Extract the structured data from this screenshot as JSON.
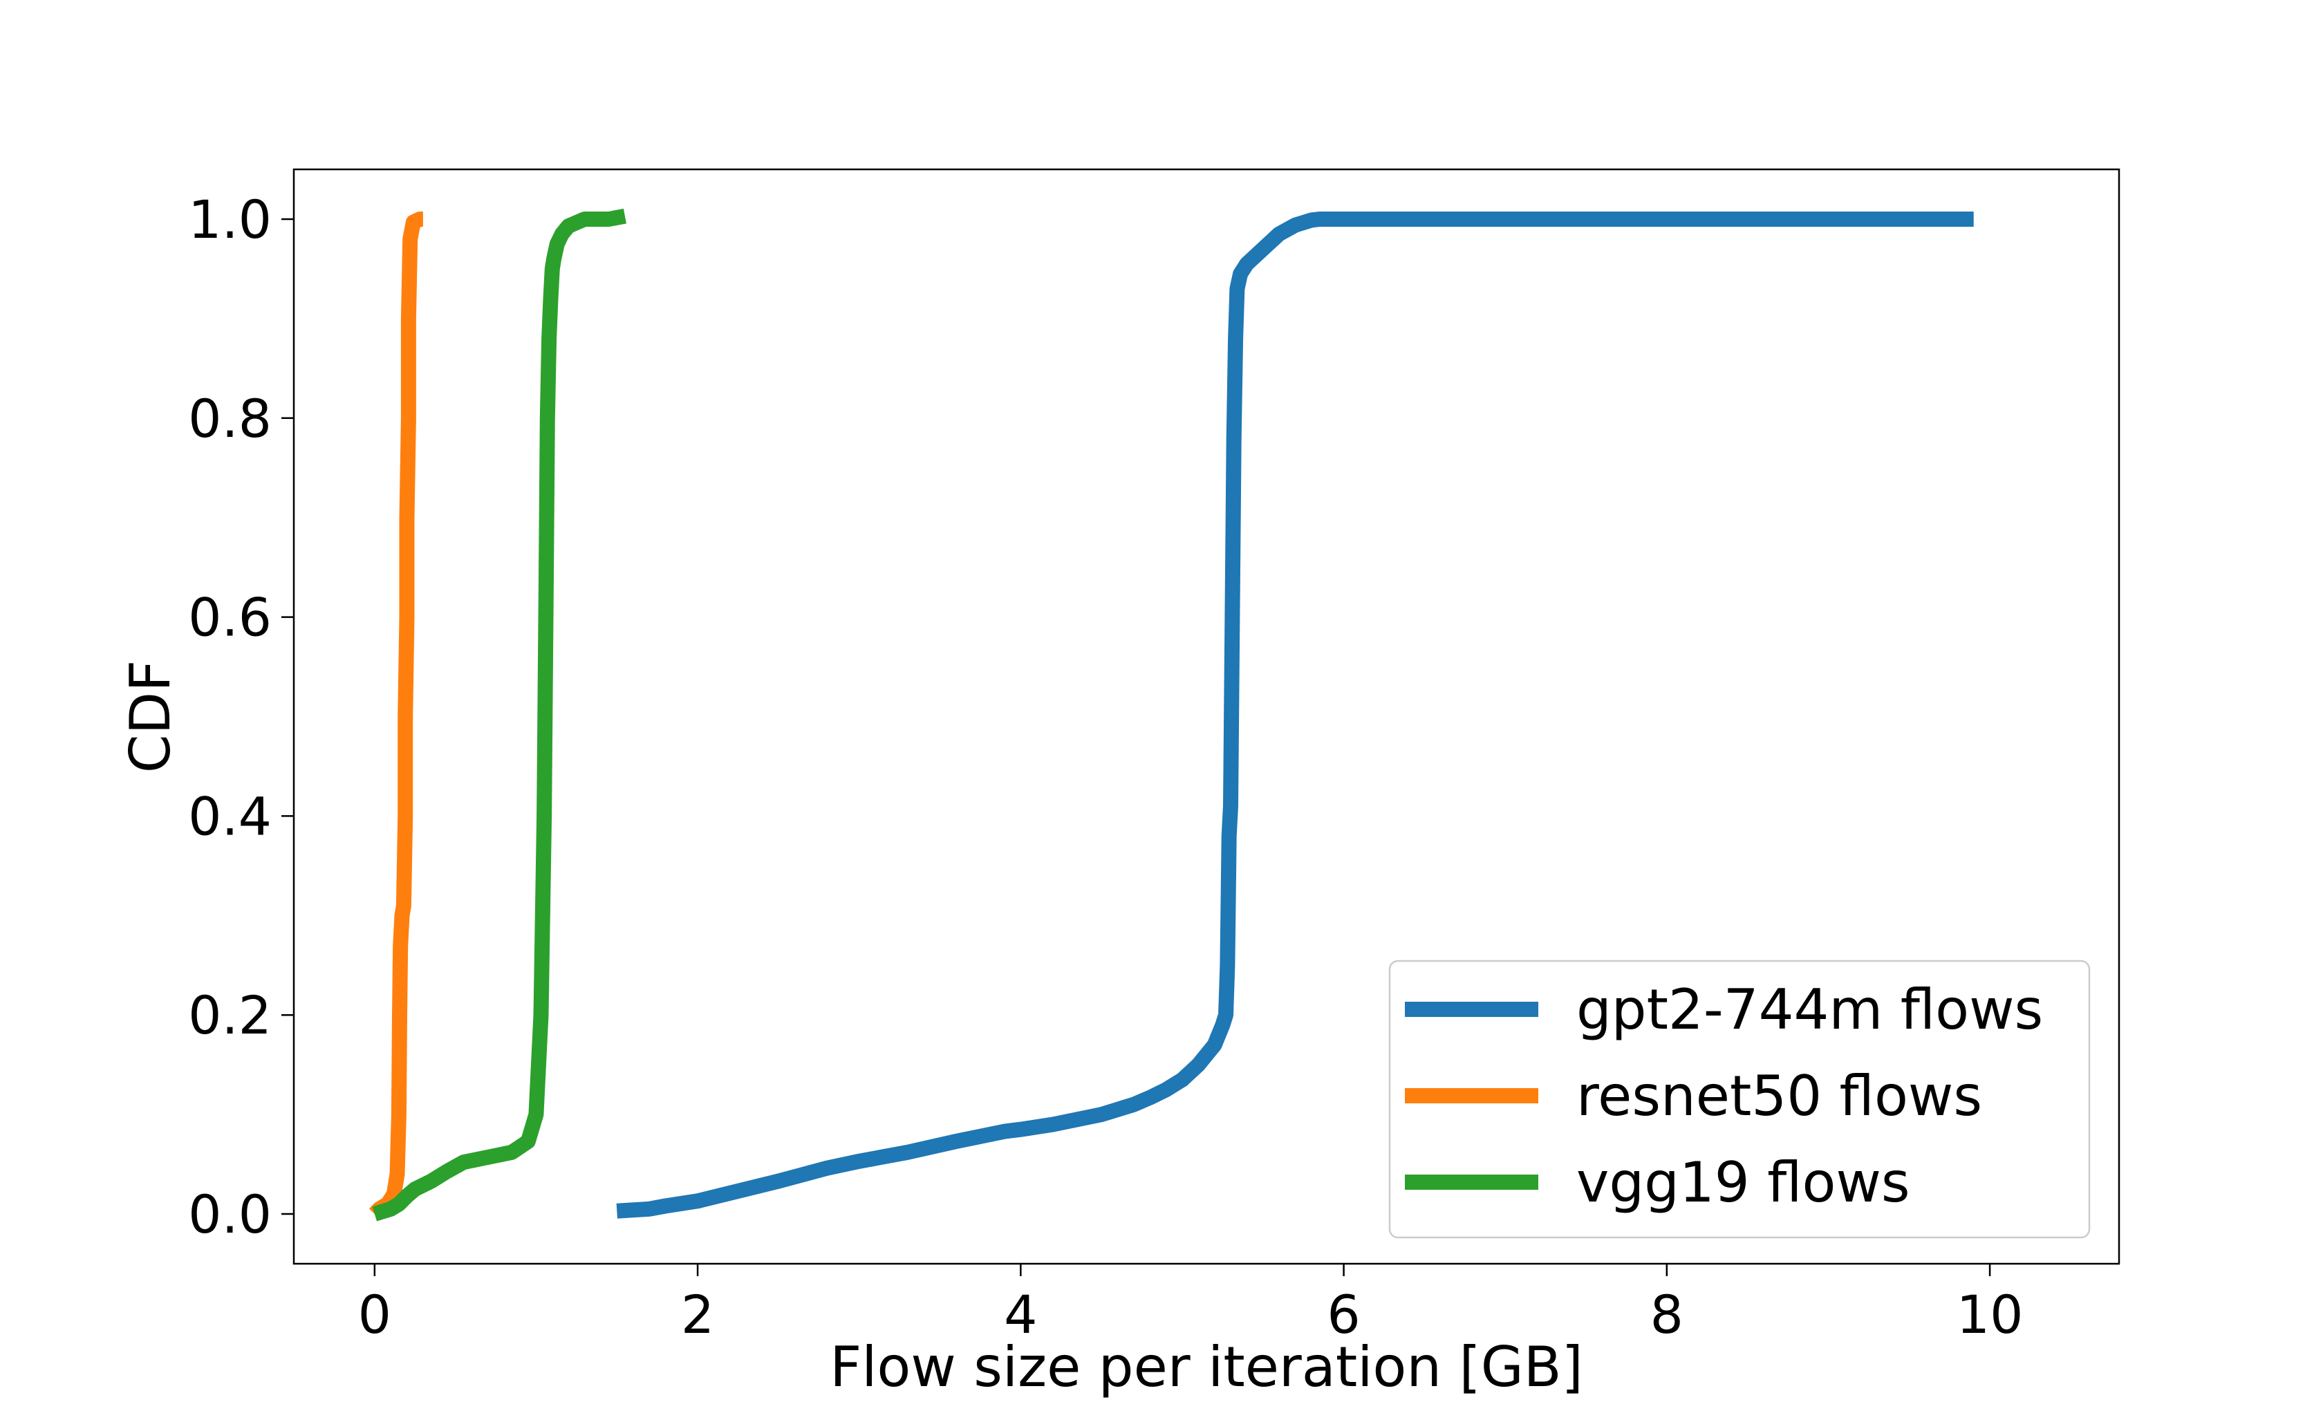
{
  "chart_data": {
    "type": "line",
    "title": "",
    "xlabel": "Flow size per iteration [GB]",
    "ylabel": "CDF",
    "xlim": [
      -0.5,
      10.8
    ],
    "ylim": [
      -0.05,
      1.05
    ],
    "xticks": [
      0,
      2,
      4,
      6,
      8,
      10
    ],
    "xtick_labels": [
      "0",
      "2",
      "4",
      "6",
      "8",
      "10"
    ],
    "yticks": [
      0.0,
      0.2,
      0.4,
      0.6,
      0.8,
      1.0
    ],
    "ytick_labels": [
      "0.0",
      "0.2",
      "0.4",
      "0.6",
      "0.8",
      "1.0"
    ],
    "grid": false,
    "legend_position": "lower-right",
    "series": [
      {
        "name": "gpt2-744m flows",
        "color": "#1f77b4",
        "x": [
          1.5,
          1.7,
          1.8,
          2.0,
          2.2,
          2.5,
          2.8,
          3.0,
          3.3,
          3.6,
          3.9,
          4.0,
          4.2,
          4.5,
          4.7,
          4.8,
          4.9,
          5.0,
          5.1,
          5.2,
          5.25,
          5.27,
          5.28,
          5.29,
          5.3,
          5.31,
          5.32,
          5.33,
          5.34,
          5.36,
          5.4,
          5.5,
          5.6,
          5.7,
          5.8,
          5.85,
          6.0,
          7.0,
          8.0,
          9.0,
          9.9
        ],
        "y": [
          0.003,
          0.005,
          0.008,
          0.013,
          0.021,
          0.033,
          0.046,
          0.053,
          0.062,
          0.073,
          0.083,
          0.085,
          0.09,
          0.1,
          0.11,
          0.117,
          0.125,
          0.135,
          0.15,
          0.17,
          0.19,
          0.2,
          0.25,
          0.38,
          0.41,
          0.6,
          0.78,
          0.88,
          0.93,
          0.945,
          0.955,
          0.97,
          0.985,
          0.994,
          0.999,
          1.0,
          1.0,
          1.0,
          1.0,
          1.0,
          1.0
        ]
      },
      {
        "name": "resnet50 flows",
        "color": "#ff7f0e",
        "x": [
          0.0,
          0.03,
          0.08,
          0.12,
          0.14,
          0.15,
          0.155,
          0.16,
          0.17,
          0.18,
          0.19,
          0.19,
          0.2,
          0.2,
          0.21,
          0.21,
          0.22,
          0.24,
          0.28,
          0.3
        ],
        "y": [
          0.0,
          0.005,
          0.01,
          0.02,
          0.04,
          0.1,
          0.2,
          0.27,
          0.3,
          0.31,
          0.4,
          0.5,
          0.6,
          0.7,
          0.8,
          0.9,
          0.98,
          0.997,
          1.0,
          1.0
        ]
      },
      {
        "name": "vgg19 flows",
        "color": "#2ca02c",
        "x": [
          0.0,
          0.1,
          0.15,
          0.2,
          0.25,
          0.35,
          0.45,
          0.55,
          0.7,
          0.85,
          0.95,
          1.0,
          1.03,
          1.05,
          1.06,
          1.07,
          1.08,
          1.09,
          1.1,
          1.11,
          1.13,
          1.16,
          1.2,
          1.3,
          1.45,
          1.55
        ],
        "y": [
          0.0,
          0.005,
          0.01,
          0.018,
          0.025,
          0.033,
          0.043,
          0.052,
          0.057,
          0.062,
          0.073,
          0.1,
          0.2,
          0.4,
          0.6,
          0.8,
          0.88,
          0.92,
          0.95,
          0.96,
          0.975,
          0.985,
          0.993,
          1.0,
          1.0,
          1.003
        ]
      }
    ]
  }
}
